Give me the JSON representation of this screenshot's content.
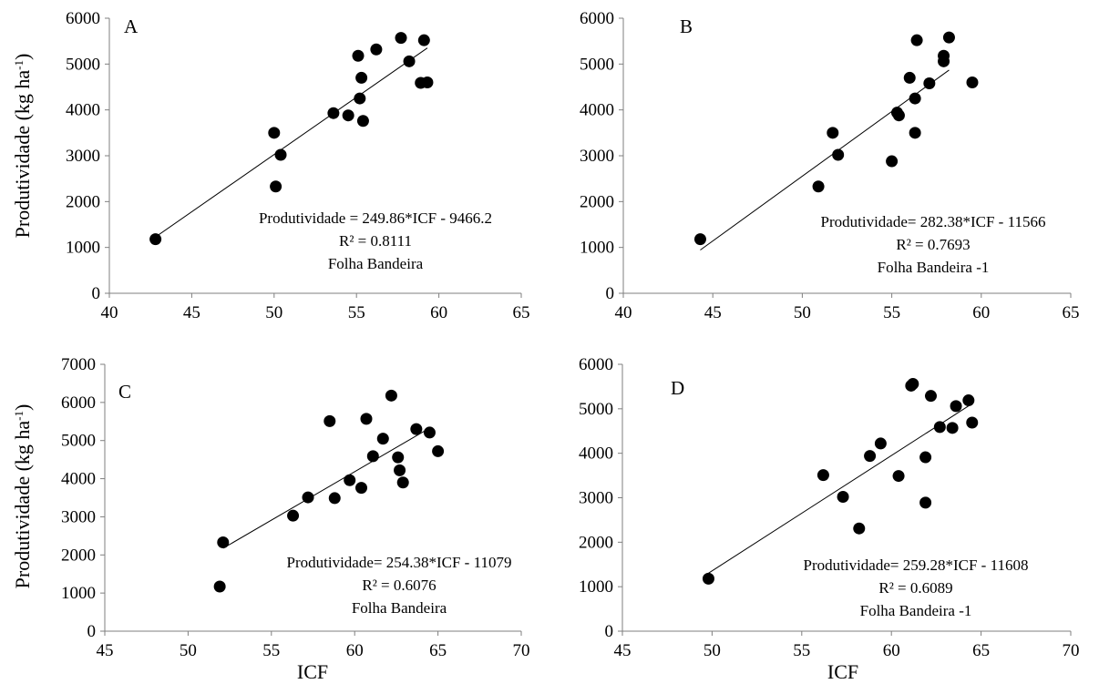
{
  "figure": {
    "ylabel_main": "Produtividade (kg ha",
    "ylabel_sup": "-1",
    "ylabel_end": ")",
    "xlabel": "ICF"
  },
  "chart_data": [
    {
      "type": "scatter",
      "panel": "A",
      "xlim": [
        40,
        65
      ],
      "ylim": [
        0,
        6000
      ],
      "xticks": [
        40,
        45,
        50,
        55,
        60,
        65
      ],
      "yticks": [
        0,
        1000,
        2000,
        3000,
        4000,
        5000,
        6000
      ],
      "points": [
        [
          42.8,
          1180
        ],
        [
          50.0,
          3500
        ],
        [
          50.1,
          2330
        ],
        [
          50.4,
          3020
        ],
        [
          53.6,
          3930
        ],
        [
          54.5,
          3880
        ],
        [
          55.1,
          5180
        ],
        [
          55.2,
          4250
        ],
        [
          55.3,
          4700
        ],
        [
          55.4,
          3760
        ],
        [
          56.2,
          5320
        ],
        [
          57.7,
          5570
        ],
        [
          58.2,
          5060
        ],
        [
          58.9,
          4590
        ],
        [
          59.1,
          5520
        ],
        [
          59.3,
          4600
        ]
      ],
      "fit": {
        "slope": 249.86,
        "intercept": -9466.2,
        "x_range": [
          42.8,
          59.3
        ]
      },
      "equation": "Produtividade = 249.86*ICF - 9466.2",
      "r2": "R² = 0.8111",
      "leaf": "Folha Bandeira"
    },
    {
      "type": "scatter",
      "panel": "B",
      "xlim": [
        40,
        65
      ],
      "ylim": [
        0,
        6000
      ],
      "xticks": [
        40,
        45,
        50,
        55,
        60,
        65
      ],
      "yticks": [
        0,
        1000,
        2000,
        3000,
        4000,
        5000,
        6000
      ],
      "points": [
        [
          44.3,
          1180
        ],
        [
          50.9,
          2330
        ],
        [
          51.7,
          3500
        ],
        [
          52.0,
          3020
        ],
        [
          55.0,
          2880
        ],
        [
          55.3,
          3940
        ],
        [
          55.4,
          3880
        ],
        [
          56.0,
          4700
        ],
        [
          56.3,
          3500
        ],
        [
          56.3,
          4250
        ],
        [
          56.4,
          5520
        ],
        [
          57.1,
          4580
        ],
        [
          57.9,
          5060
        ],
        [
          57.9,
          5180
        ],
        [
          58.2,
          5580
        ],
        [
          59.5,
          4600
        ]
      ],
      "fit": {
        "slope": 282.38,
        "intercept": -11566,
        "x_range": [
          44.3,
          58.2
        ]
      },
      "equation": "Produtividade= 282.38*ICF - 11566",
      "r2": "R² = 0.7693",
      "leaf": "Folha Bandeira -1"
    },
    {
      "type": "scatter",
      "panel": "C",
      "xlim": [
        45,
        70
      ],
      "ylim": [
        0,
        7000
      ],
      "xticks": [
        45,
        50,
        55,
        60,
        65,
        70
      ],
      "yticks": [
        0,
        1000,
        2000,
        3000,
        4000,
        5000,
        6000,
        7000
      ],
      "points": [
        [
          51.9,
          1170
        ],
        [
          52.1,
          2330
        ],
        [
          56.3,
          3030
        ],
        [
          57.2,
          3510
        ],
        [
          58.5,
          5510
        ],
        [
          58.8,
          3490
        ],
        [
          59.7,
          3960
        ],
        [
          60.4,
          3760
        ],
        [
          60.7,
          5570
        ],
        [
          61.1,
          4590
        ],
        [
          61.7,
          5050
        ],
        [
          62.2,
          6180
        ],
        [
          62.6,
          4560
        ],
        [
          62.7,
          4220
        ],
        [
          62.9,
          3900
        ],
        [
          63.7,
          5300
        ],
        [
          64.5,
          5210
        ],
        [
          65.0,
          4720
        ]
      ],
      "fit": {
        "slope": 254.38,
        "intercept": -11079,
        "x_range": [
          52.1,
          64.6
        ]
      },
      "equation": "Produtividade= 254.38*ICF - 11079",
      "r2": "R² = 0.6076",
      "leaf": "Folha Bandeira"
    },
    {
      "type": "scatter",
      "panel": "D",
      "xlim": [
        45,
        70
      ],
      "ylim": [
        0,
        6000
      ],
      "xticks": [
        45,
        50,
        55,
        60,
        65,
        70
      ],
      "yticks": [
        0,
        1000,
        2000,
        3000,
        4000,
        5000,
        6000
      ],
      "points": [
        [
          49.8,
          1180
        ],
        [
          56.2,
          3510
        ],
        [
          57.3,
          3020
        ],
        [
          58.2,
          2310
        ],
        [
          58.8,
          3940
        ],
        [
          59.4,
          4220
        ],
        [
          60.4,
          3490
        ],
        [
          61.1,
          5520
        ],
        [
          61.2,
          5560
        ],
        [
          61.9,
          3910
        ],
        [
          61.9,
          2890
        ],
        [
          62.2,
          5290
        ],
        [
          62.7,
          4590
        ],
        [
          63.4,
          4570
        ],
        [
          63.6,
          5060
        ],
        [
          64.3,
          5190
        ],
        [
          64.5,
          4690
        ]
      ],
      "fit": {
        "slope": 259.28,
        "intercept": -11608,
        "x_range": [
          49.8,
          64.4
        ]
      },
      "equation": "Produtividade= 259.28*ICF - 11608",
      "r2": "R² = 0.6089",
      "leaf": "Folha Bandeira -1"
    }
  ]
}
